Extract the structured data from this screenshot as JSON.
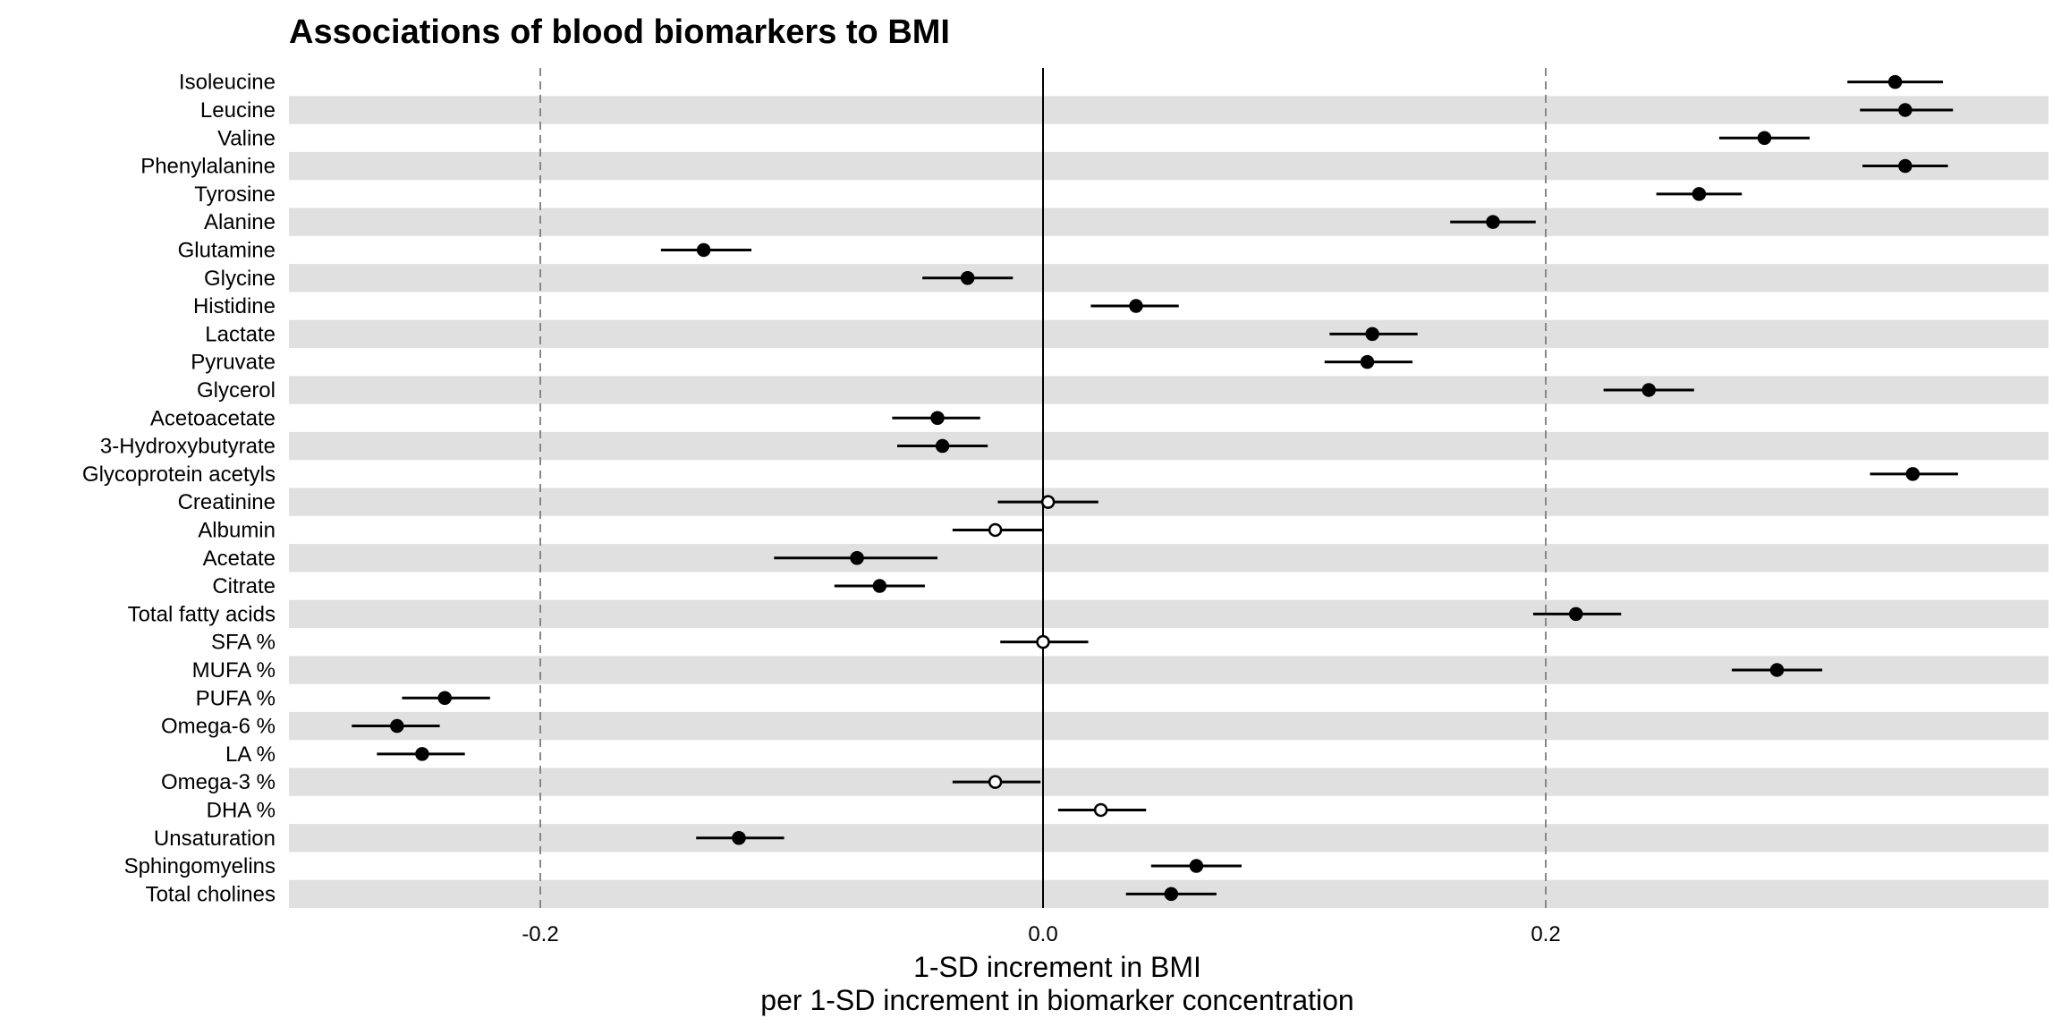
{
  "chart_data": {
    "type": "scatter",
    "title": "Associations of blood biomarkers to BMI",
    "xlabel": "1-SD increment in BMI",
    "xlabel_line2": "per 1-SD increment in biomarker concentration",
    "ylabel": "",
    "xlim": [
      -0.3,
      0.4
    ],
    "xticks": [
      -0.2,
      0.0,
      0.2
    ],
    "xtick_labels": [
      "-0.2",
      "0.0",
      "0.2"
    ],
    "reference_line": 0.0,
    "dashed_lines": [
      -0.2,
      0.2
    ],
    "grid": false,
    "legend": "none",
    "alternating_row_shading": true,
    "colors": {
      "marker": "#000000",
      "row_shade": "#e0e0e0",
      "dashed": "#888888"
    },
    "marker_meaning": {
      "filled": "significant",
      "open": "not significant"
    },
    "series": [
      {
        "points": [
          {
            "label": "Isoleucine",
            "estimate": 0.339,
            "lower": 0.32,
            "upper": 0.358,
            "filled": true
          },
          {
            "label": "Leucine",
            "estimate": 0.343,
            "lower": 0.325,
            "upper": 0.362,
            "filled": true
          },
          {
            "label": "Valine",
            "estimate": 0.287,
            "lower": 0.269,
            "upper": 0.305,
            "filled": true
          },
          {
            "label": "Phenylalanine",
            "estimate": 0.343,
            "lower": 0.326,
            "upper": 0.36,
            "filled": true
          },
          {
            "label": "Tyrosine",
            "estimate": 0.261,
            "lower": 0.244,
            "upper": 0.278,
            "filled": true
          },
          {
            "label": "Alanine",
            "estimate": 0.179,
            "lower": 0.162,
            "upper": 0.196,
            "filled": true
          },
          {
            "label": "Glutamine",
            "estimate": -0.135,
            "lower": -0.152,
            "upper": -0.116,
            "filled": true
          },
          {
            "label": "Glycine",
            "estimate": -0.03,
            "lower": -0.048,
            "upper": -0.012,
            "filled": true
          },
          {
            "label": "Histidine",
            "estimate": 0.037,
            "lower": 0.019,
            "upper": 0.054,
            "filled": true
          },
          {
            "label": "Lactate",
            "estimate": 0.131,
            "lower": 0.114,
            "upper": 0.149,
            "filled": true
          },
          {
            "label": "Pyruvate",
            "estimate": 0.129,
            "lower": 0.112,
            "upper": 0.147,
            "filled": true
          },
          {
            "label": "Glycerol",
            "estimate": 0.241,
            "lower": 0.223,
            "upper": 0.259,
            "filled": true
          },
          {
            "label": "Acetoacetate",
            "estimate": -0.042,
            "lower": -0.06,
            "upper": -0.025,
            "filled": true
          },
          {
            "label": "3-Hydroxybutyrate",
            "estimate": -0.04,
            "lower": -0.058,
            "upper": -0.022,
            "filled": true
          },
          {
            "label": "Glycoprotein acetyls",
            "estimate": 0.346,
            "lower": 0.329,
            "upper": 0.364,
            "filled": true
          },
          {
            "label": "Creatinine",
            "estimate": 0.002,
            "lower": -0.018,
            "upper": 0.022,
            "filled": false
          },
          {
            "label": "Albumin",
            "estimate": -0.019,
            "lower": -0.036,
            "upper": 0.0,
            "filled": false
          },
          {
            "label": "Acetate",
            "estimate": -0.074,
            "lower": -0.107,
            "upper": -0.042,
            "filled": true
          },
          {
            "label": "Citrate",
            "estimate": -0.065,
            "lower": -0.083,
            "upper": -0.047,
            "filled": true
          },
          {
            "label": "Total fatty acids",
            "estimate": 0.212,
            "lower": 0.195,
            "upper": 0.23,
            "filled": true
          },
          {
            "label": "SFA %",
            "estimate": 0.0,
            "lower": -0.017,
            "upper": 0.018,
            "filled": false
          },
          {
            "label": "MUFA %",
            "estimate": 0.292,
            "lower": 0.274,
            "upper": 0.31,
            "filled": true
          },
          {
            "label": "PUFA %",
            "estimate": -0.238,
            "lower": -0.255,
            "upper": -0.22,
            "filled": true
          },
          {
            "label": "Omega-6 %",
            "estimate": -0.257,
            "lower": -0.275,
            "upper": -0.24,
            "filled": true
          },
          {
            "label": "LA %",
            "estimate": -0.247,
            "lower": -0.265,
            "upper": -0.23,
            "filled": true
          },
          {
            "label": "Omega-3 %",
            "estimate": -0.019,
            "lower": -0.036,
            "upper": -0.001,
            "filled": false
          },
          {
            "label": "DHA %",
            "estimate": 0.023,
            "lower": 0.006,
            "upper": 0.041,
            "filled": false
          },
          {
            "label": "Unsaturation",
            "estimate": -0.121,
            "lower": -0.138,
            "upper": -0.103,
            "filled": true
          },
          {
            "label": "Sphingomyelins",
            "estimate": 0.061,
            "lower": 0.043,
            "upper": 0.079,
            "filled": true
          },
          {
            "label": "Total cholines",
            "estimate": 0.051,
            "lower": 0.033,
            "upper": 0.069,
            "filled": true
          }
        ]
      }
    ]
  }
}
